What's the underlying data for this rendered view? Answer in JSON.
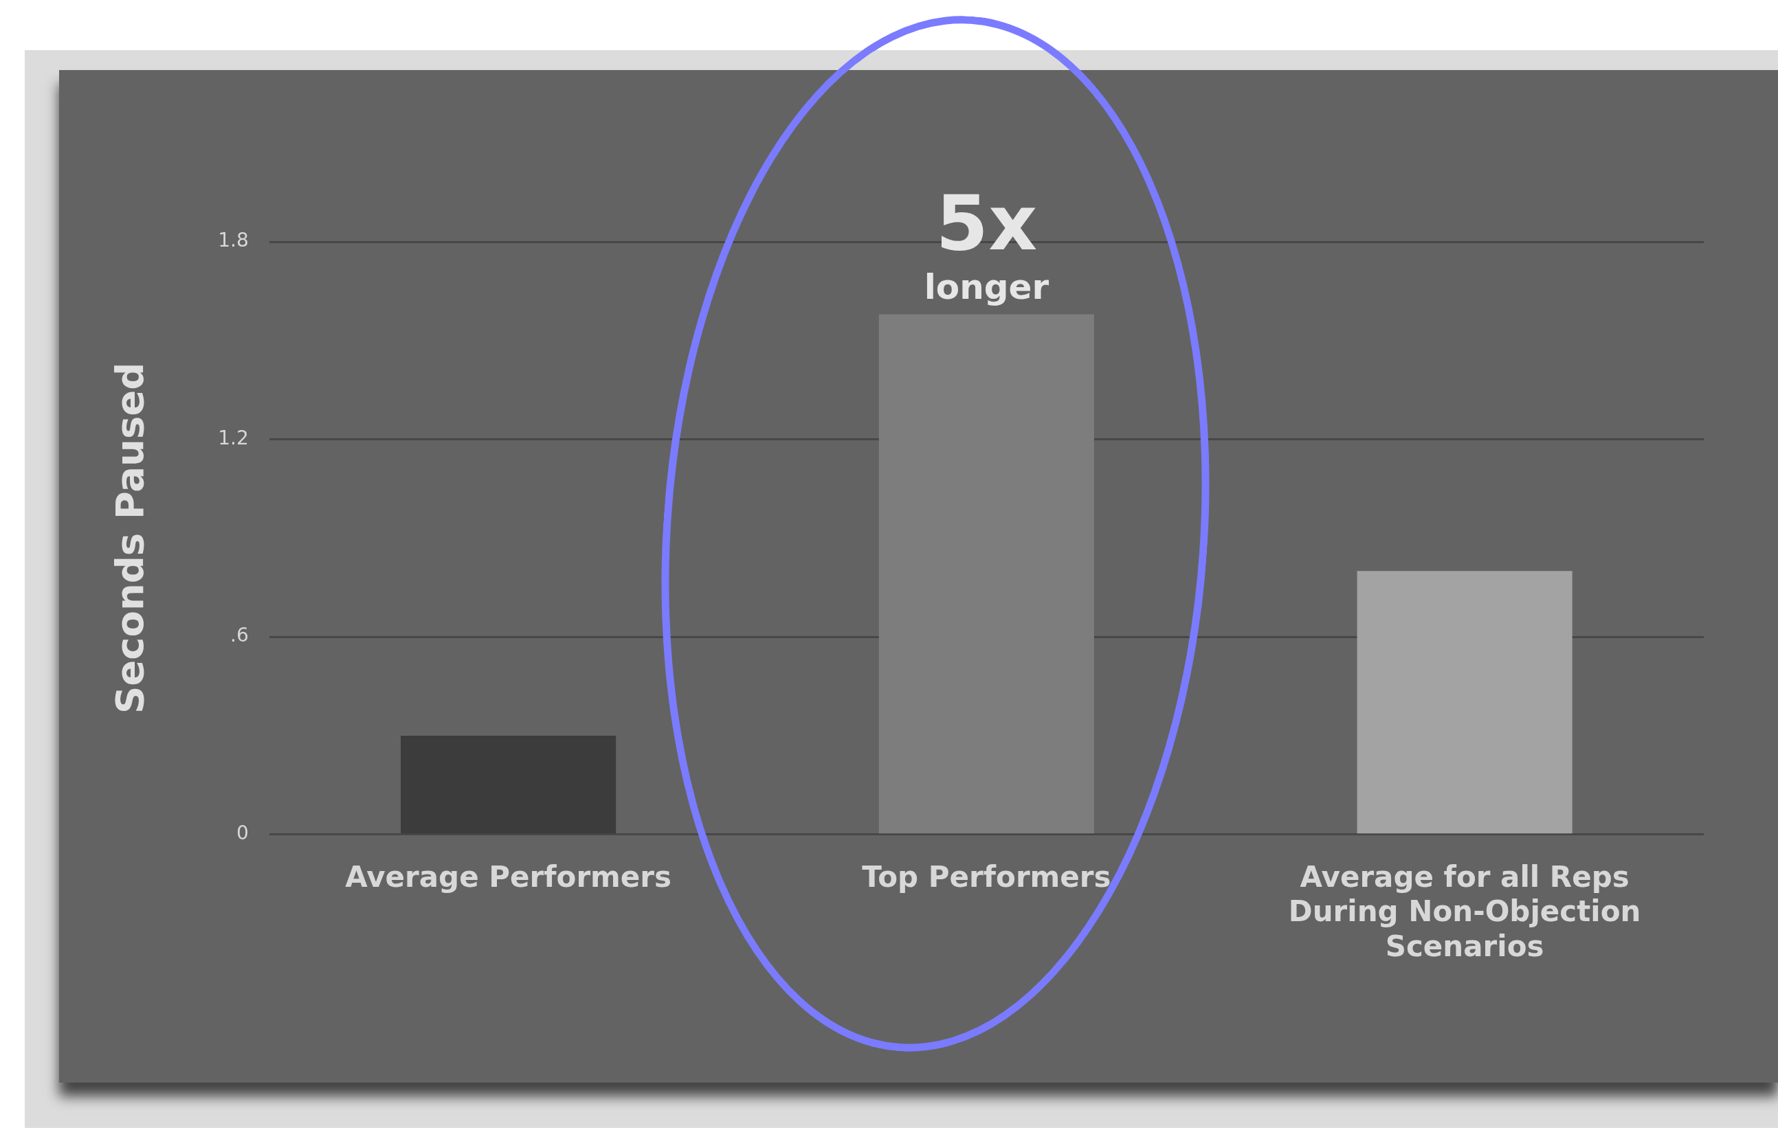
{
  "chart_data": {
    "type": "bar",
    "ylabel": "Seconds Paused",
    "categories": [
      "Average Performers",
      "Top Performers",
      "Average for all Reps During Non-Objection Scenarios"
    ],
    "values": [
      0.3,
      1.58,
      0.8
    ],
    "colors": [
      "#3c3c3c",
      "#7d7d7d",
      "#a3a3a3"
    ],
    "ylim": [
      0,
      1.8
    ],
    "yticks": [
      0,
      {
        "value": 0.6,
        "label": ".6"
      },
      1.2,
      1.8
    ],
    "grid": "y",
    "annotations": [
      {
        "text": "longer",
        "x": "Top Performers",
        "y": 1.58
      },
      {
        "text": "5x",
        "x": "Top Performers",
        "y": 1.58
      }
    ]
  }
}
